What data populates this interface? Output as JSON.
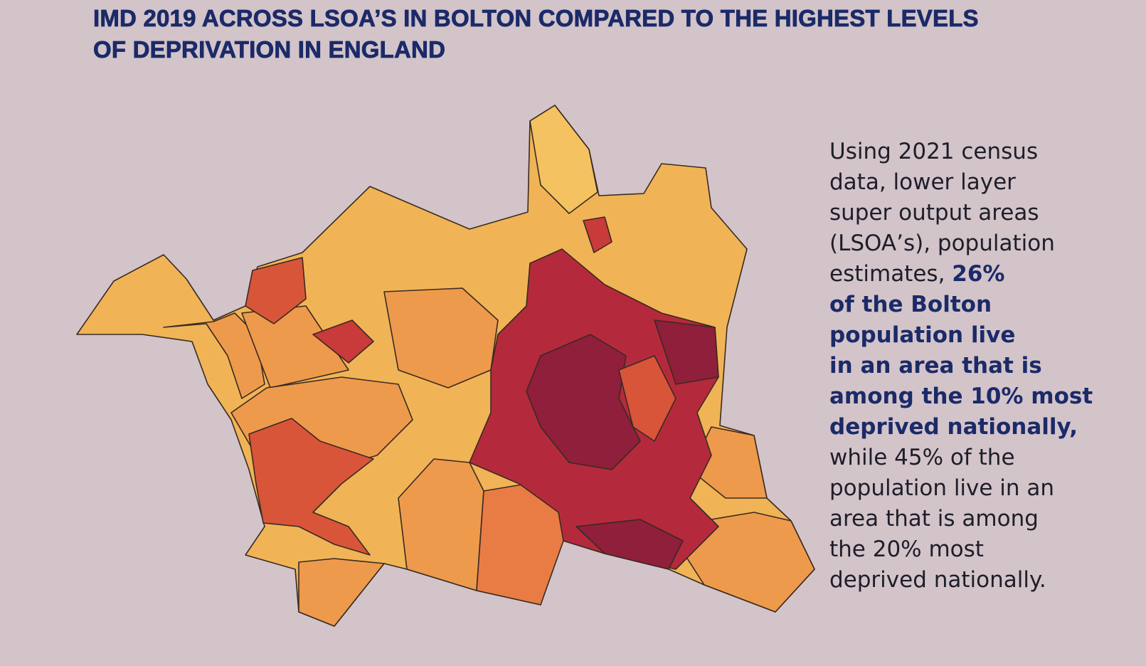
{
  "header": {
    "title_lines": [
      "IMD 2019 ACROSS LSOA’S IN BOLTON COMPARED TO THE HIGHEST LEVELS",
      "OF DEPRIVATION IN ENGLAND"
    ]
  },
  "body": {
    "regular_lines": [
      "Using 2021 census",
      "data, lower layer",
      "super output areas",
      "(LSOA’s), population",
      "estimates,"
    ],
    "highlight_lines": [
      "26%",
      "of the Bolton",
      "population live",
      "in an area that is",
      "among the 10% most",
      "deprived nationally,"
    ],
    "closing_lines": [
      "while 45% of the",
      "population live in an",
      "area that is among",
      "the 20% most",
      "deprived nationally."
    ]
  }
}
